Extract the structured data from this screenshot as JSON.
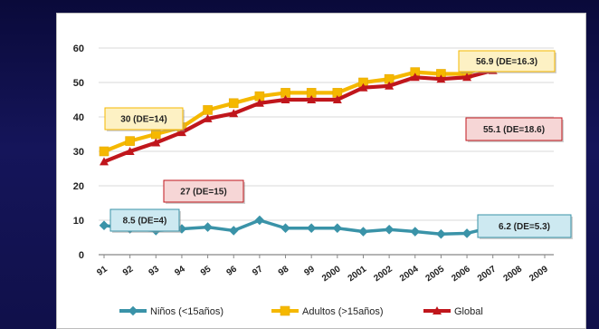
{
  "chart_data": {
    "type": "line",
    "categories": [
      "91",
      "92",
      "93",
      "94",
      "95",
      "96",
      "97",
      "98",
      "99",
      "2000",
      "2001",
      "2002",
      "2004",
      "2005",
      "2006",
      "2007",
      "2008",
      "2009"
    ],
    "ylim": [
      0,
      60
    ],
    "yticks": [
      0,
      10,
      20,
      30,
      40,
      50,
      60
    ],
    "grid": true,
    "legend_position": "bottom",
    "series": [
      {
        "name": "Niños (<15años)",
        "color": "#3a93a8",
        "values": [
          8.5,
          7.5,
          7,
          7.5,
          8,
          7,
          10,
          7.7,
          7.7,
          7.7,
          6.7,
          7.3,
          6.7,
          6,
          6.2,
          8,
          7,
          6.2
        ]
      },
      {
        "name": "Adultos (>15años)",
        "color": "#f5b800",
        "values": [
          30,
          33,
          35,
          37,
          42,
          44,
          46,
          47,
          47,
          47,
          50,
          51,
          53,
          52.5,
          52.5,
          56,
          56.5,
          56.9
        ]
      },
      {
        "name": "Global",
        "color": "#c0161c",
        "values": [
          27,
          30,
          32.5,
          35.5,
          39.5,
          41,
          44,
          45,
          45,
          45,
          48.5,
          49,
          51.5,
          51,
          51.5,
          53.5,
          54.5,
          55.1
        ]
      }
    ],
    "annotations": [
      {
        "text": "30 (DE=14)",
        "color": "#f5b800",
        "fill": "#fdf1c4"
      },
      {
        "text": "27 (DE=15)",
        "color": "#c0161c",
        "fill": "#f6d6d6"
      },
      {
        "text": "8.5 (DE=4)",
        "color": "#3a93a8",
        "fill": "#cde9f1"
      },
      {
        "text": "56.9 (DE=16.3)",
        "color": "#f5b800",
        "fill": "#fdf1c4"
      },
      {
        "text": "55.1 (DE=18.6)",
        "color": "#c0161c",
        "fill": "#f6d6d6"
      },
      {
        "text": "6.2 (DE=5.3)",
        "color": "#3a93a8",
        "fill": "#cde9f1"
      }
    ]
  }
}
